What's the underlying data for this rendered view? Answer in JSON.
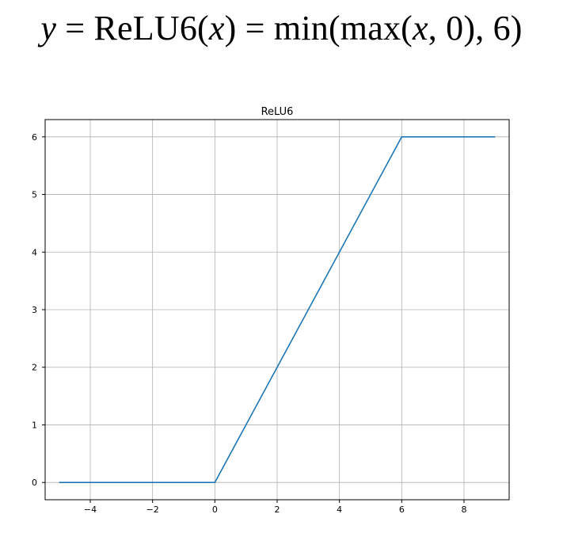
{
  "formula": {
    "lhs_var": "y",
    "eq1": " = ",
    "fn_name": "ReLU6(",
    "arg": "x",
    "close1": ")",
    "eq2": " = ",
    "rhs_min": "min(max(",
    "rhs_x": "x",
    "rhs_rest": ", 0), 6)"
  },
  "chart_data": {
    "type": "line",
    "title": "ReLU6",
    "xlabel": "",
    "ylabel": "",
    "xlim": [
      -5.45,
      9.45
    ],
    "ylim": [
      -0.3,
      6.3
    ],
    "grid": true,
    "xticks": [
      -4,
      -2,
      0,
      2,
      4,
      6,
      8
    ],
    "yticks": [
      0,
      1,
      2,
      3,
      4,
      5,
      6
    ],
    "series": [
      {
        "color": "#1f77b4",
        "x": [
          -5,
          0,
          6,
          9
        ],
        "y": [
          0,
          0,
          6,
          6
        ]
      }
    ]
  }
}
